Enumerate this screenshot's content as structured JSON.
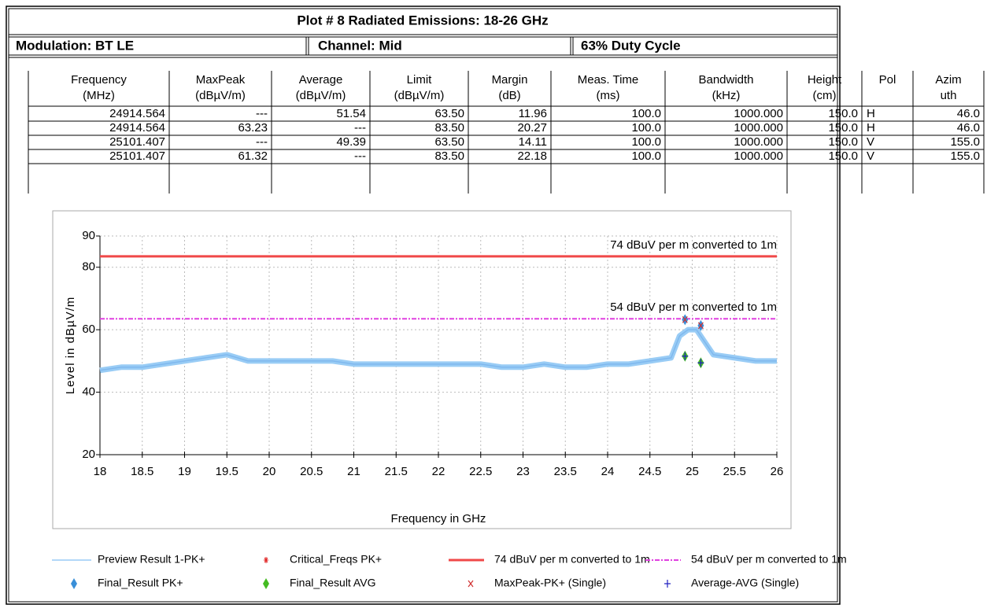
{
  "title": "Plot # 8 Radiated Emissions: 18-26 GHz",
  "info": [
    "Modulation: BT LE",
    "Channel: Mid",
    "63% Duty Cycle"
  ],
  "table": {
    "headers": [
      [
        "Frequency",
        "(MHz)"
      ],
      [
        "MaxPeak",
        "(dBµV/m)"
      ],
      [
        "Average",
        "(dBµV/m)"
      ],
      [
        "Limit",
        "(dBµV/m)"
      ],
      [
        "Margin",
        "(dB)"
      ],
      [
        "Meas. Time",
        "(ms)"
      ],
      [
        "Bandwidth",
        "(kHz)"
      ],
      [
        "Height",
        "(cm)"
      ],
      [
        "Pol"
      ],
      [
        "Azim",
        "uth"
      ]
    ],
    "rows": [
      [
        "24914.564",
        "---",
        "51.54",
        "63.50",
        "11.96",
        "100.0",
        "1000.000",
        "150.0",
        "H",
        "46.0"
      ],
      [
        "24914.564",
        "63.23",
        "---",
        "83.50",
        "20.27",
        "100.0",
        "1000.000",
        "150.0",
        "H",
        "46.0"
      ],
      [
        "25101.407",
        "---",
        "49.39",
        "63.50",
        "14.11",
        "100.0",
        "1000.000",
        "150.0",
        "V",
        "155.0"
      ],
      [
        "25101.407",
        "61.32",
        "---",
        "83.50",
        "22.18",
        "100.0",
        "1000.000",
        "150.0",
        "V",
        "155.0"
      ]
    ]
  },
  "chart_data": {
    "type": "line",
    "xlabel": "Frequency in GHz",
    "ylabel": "Level in dBµV/m",
    "xlim": [
      18,
      26
    ],
    "ylim": [
      20,
      90
    ],
    "xticks": [
      18,
      18.5,
      19,
      19.5,
      20,
      20.5,
      21,
      21.5,
      22,
      22.5,
      23,
      23.5,
      24,
      24.5,
      25,
      25.5,
      26
    ],
    "yticks": [
      20,
      40,
      60,
      80,
      90
    ],
    "grid": true,
    "series": [
      {
        "name": "Preview Result 1-PK+",
        "color": "#99ccf5",
        "style": "line",
        "x": [
          18,
          18.25,
          18.5,
          18.75,
          19,
          19.25,
          19.5,
          19.75,
          20,
          20.25,
          20.5,
          20.75,
          21,
          21.25,
          21.5,
          21.75,
          22,
          22.25,
          22.5,
          22.75,
          23,
          23.25,
          23.5,
          23.75,
          24,
          24.25,
          24.5,
          24.75,
          24.85,
          24.95,
          25.05,
          25.15,
          25.25,
          25.5,
          25.75,
          26
        ],
        "values": [
          47,
          48,
          48,
          49,
          50,
          51,
          52,
          50,
          50,
          50,
          50,
          50,
          49,
          49,
          49,
          49,
          49,
          49,
          49,
          48,
          48,
          49,
          48,
          48,
          49,
          49,
          50,
          51,
          58,
          60,
          60,
          56,
          52,
          51,
          50,
          50
        ]
      },
      {
        "name": "Critical_Freqs PK+",
        "color": "#e02020",
        "marker": "star",
        "x": [
          24.914564,
          25.101407
        ],
        "values": [
          63.23,
          61.32
        ]
      },
      {
        "name": "74 dBuV per m converted to 1m",
        "color": "#f04848",
        "style": "hline",
        "values": [
          83.5
        ]
      },
      {
        "name": "54 dBuV per m converted to 1m",
        "color": "#e040e0",
        "style": "dashline",
        "values": [
          63.5
        ]
      },
      {
        "name": "Final_Result PK+",
        "color": "#3a8fd8",
        "marker": "diamond",
        "x": [
          24.914564,
          25.101407
        ],
        "values": [
          63.23,
          61.32
        ]
      },
      {
        "name": "Final_Result AVG",
        "color": "#44bb22",
        "marker": "diamond",
        "x": [
          24.914564,
          25.101407
        ],
        "values": [
          51.54,
          49.39
        ]
      },
      {
        "name": "MaxPeak-PK+ (Single)",
        "color": "#d03030",
        "marker": "x",
        "x": [
          24.914564,
          25.101407
        ],
        "values": [
          63.23,
          61.32
        ]
      },
      {
        "name": "Average-AVG (Single)",
        "color": "#2020c0",
        "marker": "plus",
        "x": [
          24.914564,
          25.101407
        ],
        "values": [
          51.54,
          49.39
        ]
      }
    ]
  }
}
